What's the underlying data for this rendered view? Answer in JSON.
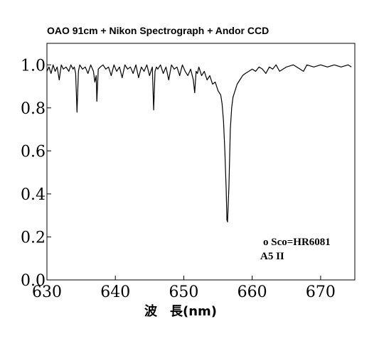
{
  "chart_data": {
    "type": "line",
    "title": "OAO 91cm + Nikon Spectrograph + Andor CCD",
    "xlabel": "波　長(nm)",
    "ylabel": "",
    "xlim": [
      630,
      675
    ],
    "ylim": [
      0.0,
      1.1
    ],
    "x_ticks": [
      "630",
      "640",
      "650",
      "660",
      "670"
    ],
    "y_ticks": [
      "0.0",
      "0.2",
      "0.4",
      "0.6",
      "0.8",
      "1.0"
    ],
    "grid": false,
    "legend": "none",
    "annotations": [
      "o Sco=HR6081",
      "A5 II"
    ],
    "series": [
      {
        "line_color": "#000000",
        "x": [
          630.0,
          630.3,
          630.6,
          630.9,
          631.2,
          631.5,
          631.8,
          632.1,
          632.4,
          632.8,
          633.2,
          633.5,
          633.8,
          634.0,
          634.2,
          634.4,
          634.6,
          634.8,
          635.0,
          635.2,
          635.6,
          636.0,
          636.4,
          636.8,
          637.0,
          637.2,
          637.3,
          637.5,
          637.8,
          638.2,
          638.6,
          639.0,
          639.4,
          639.8,
          640.2,
          640.6,
          641.0,
          641.4,
          641.8,
          642.2,
          642.6,
          643.0,
          643.4,
          643.8,
          644.2,
          644.6,
          645.0,
          645.4,
          645.6,
          645.8,
          646.0,
          646.2,
          646.6,
          647.0,
          647.4,
          647.8,
          648.2,
          648.6,
          649.0,
          649.4,
          649.8,
          650.2,
          650.6,
          651.0,
          651.4,
          651.6,
          651.8,
          652.0,
          652.2,
          652.6,
          653.0,
          653.4,
          653.8,
          654.2,
          654.6,
          655.0,
          655.4,
          655.6,
          655.8,
          656.0,
          656.2,
          656.3,
          656.4,
          656.6,
          656.8,
          657.0,
          657.2,
          657.5,
          657.8,
          658.2,
          658.6,
          659.0,
          659.5,
          660.0,
          660.5,
          661.0,
          661.5,
          662.0,
          662.5,
          663.0,
          663.5,
          664.0,
          665.0,
          666.0,
          667.0,
          667.5,
          668.0,
          669.0,
          670.0,
          671.0,
          672.0,
          673.0,
          674.0,
          674.5
        ],
        "y": [
          0.97,
          0.99,
          0.96,
          1.0,
          0.97,
          0.99,
          0.93,
          1.0,
          0.98,
          0.99,
          0.97,
          1.0,
          0.98,
          0.99,
          0.96,
          0.78,
          0.97,
          1.0,
          0.99,
          0.98,
          0.99,
          0.96,
          1.0,
          0.97,
          0.92,
          0.95,
          0.83,
          0.98,
          0.99,
          1.0,
          0.98,
          0.99,
          0.95,
          1.0,
          0.97,
          0.99,
          0.94,
          1.0,
          0.98,
          0.99,
          0.96,
          1.0,
          0.94,
          0.99,
          0.97,
          1.0,
          0.95,
          0.99,
          0.79,
          0.97,
          0.99,
          0.98,
          1.0,
          0.96,
          0.99,
          0.93,
          1.0,
          0.98,
          0.99,
          0.95,
          1.0,
          0.97,
          0.95,
          0.98,
          0.93,
          0.87,
          0.97,
          0.96,
          0.99,
          0.95,
          0.97,
          0.93,
          0.95,
          0.91,
          0.92,
          0.88,
          0.86,
          0.82,
          0.74,
          0.6,
          0.42,
          0.28,
          0.27,
          0.44,
          0.7,
          0.8,
          0.85,
          0.88,
          0.91,
          0.93,
          0.95,
          0.96,
          0.97,
          0.98,
          0.97,
          0.99,
          0.98,
          0.96,
          0.99,
          0.98,
          1.0,
          0.97,
          0.99,
          1.0,
          0.98,
          0.97,
          1.0,
          0.99,
          1.0,
          0.99,
          1.0,
          0.99,
          1.0,
          0.99
        ]
      }
    ]
  }
}
